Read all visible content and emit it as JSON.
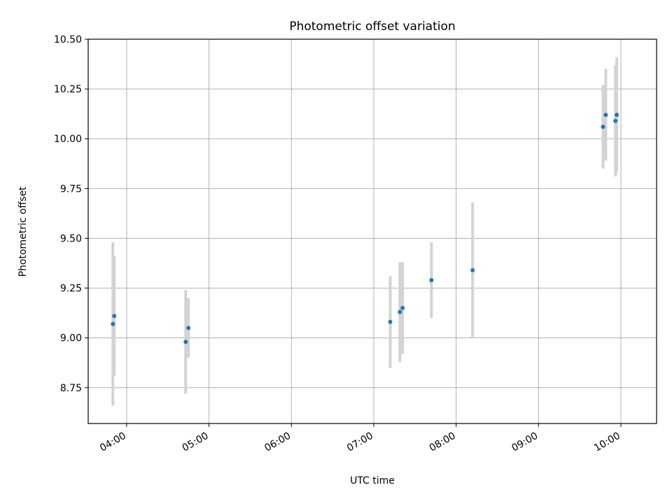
{
  "chart_data": {
    "type": "scatter",
    "title": "Photometric offset variation",
    "xlabel": "UTC time",
    "ylabel": "Photometric offset",
    "x_unit": "HH:MM",
    "xlim": [
      "03:32",
      "10:26"
    ],
    "ylim": [
      8.57,
      10.5
    ],
    "grid": true,
    "x_ticks": [
      "04:00",
      "05:00",
      "06:00",
      "07:00",
      "08:00",
      "09:00",
      "10:00"
    ],
    "y_ticks": [
      "8.75",
      "9.00",
      "9.25",
      "9.50",
      "9.75",
      "10.00",
      "10.25",
      "10.50"
    ],
    "colors": {
      "point": "#1f77b4",
      "errorbar": "#d3d3d3",
      "grid": "#b0b0b0"
    },
    "series": [
      {
        "points": [
          {
            "x": "03:50",
            "y": 9.07,
            "err": 0.41
          },
          {
            "x": "03:51",
            "y": 9.11,
            "err": 0.3
          },
          {
            "x": "04:43",
            "y": 8.98,
            "err": 0.26
          },
          {
            "x": "04:45",
            "y": 9.05,
            "err": 0.15
          },
          {
            "x": "07:12",
            "y": 9.08,
            "err": 0.23
          },
          {
            "x": "07:19",
            "y": 9.13,
            "err": 0.25
          },
          {
            "x": "07:21",
            "y": 9.15,
            "err": 0.23
          },
          {
            "x": "07:42",
            "y": 9.29,
            "err": 0.19
          },
          {
            "x": "08:12",
            "y": 9.34,
            "err": 0.34
          },
          {
            "x": "09:47",
            "y": 10.06,
            "err": 0.21
          },
          {
            "x": "09:49",
            "y": 10.12,
            "err": 0.23
          },
          {
            "x": "09:56",
            "y": 10.09,
            "err": 0.28
          },
          {
            "x": "09:57",
            "y": 10.12,
            "err": 0.29
          }
        ]
      }
    ]
  }
}
